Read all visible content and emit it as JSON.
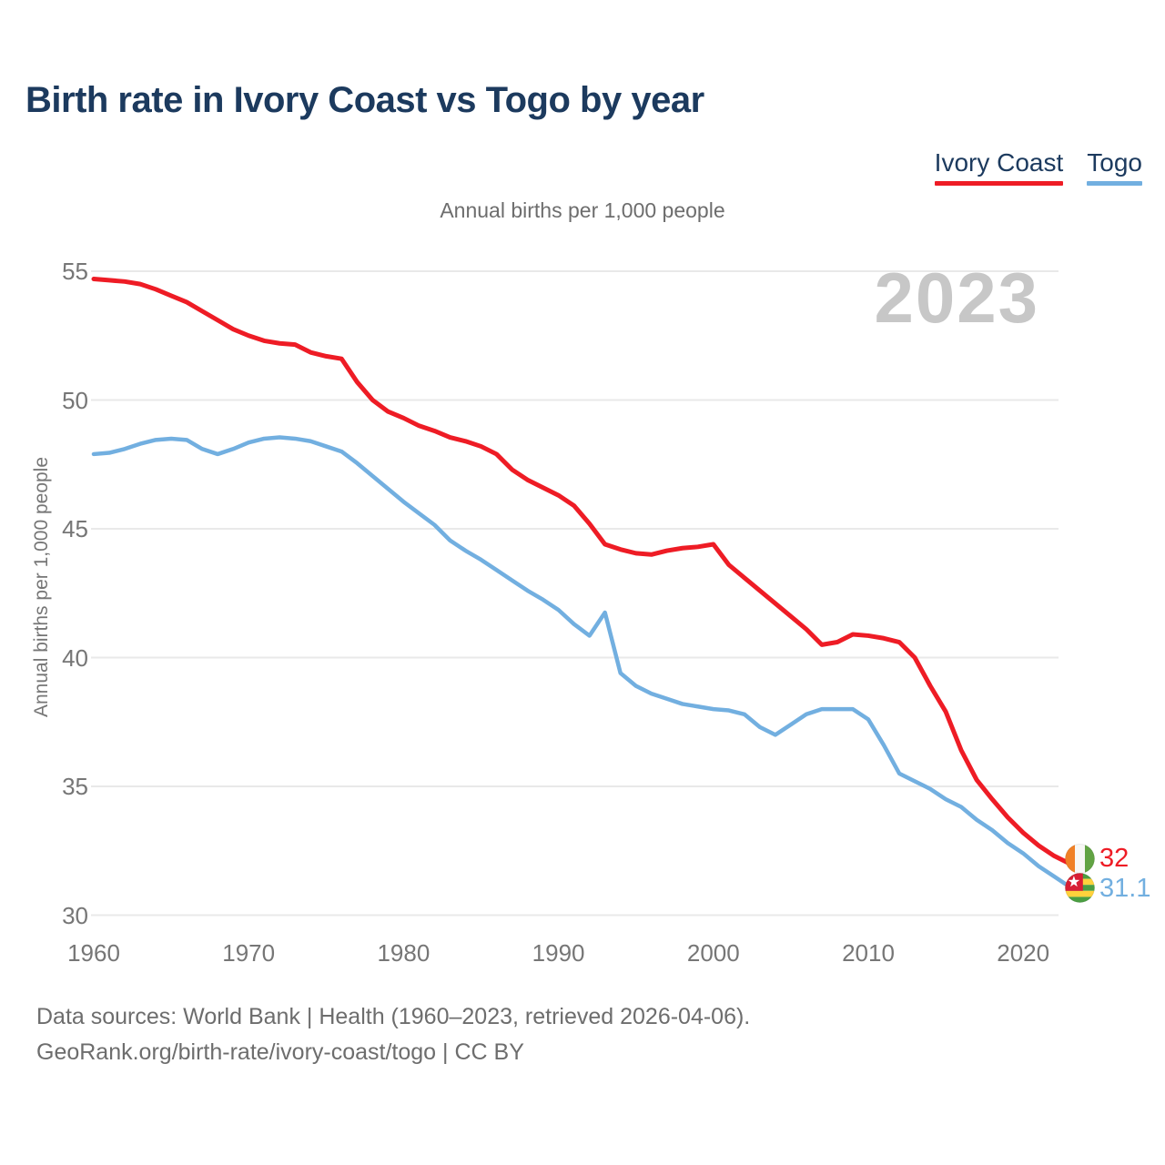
{
  "header": {
    "title": "Birth rate in Ivory Coast vs Togo by year",
    "subtitle": "Annual births per 1,000 people"
  },
  "legend": [
    {
      "label": "Ivory Coast",
      "color": "#ee1c25"
    },
    {
      "label": "Togo",
      "color": "#72afe0"
    }
  ],
  "watermark": "2023",
  "y_axis_title": "Annual births per 1,000 people",
  "end_labels": [
    {
      "series": "Ivory Coast",
      "value": "32",
      "flag": "ivory-coast-flag"
    },
    {
      "series": "Togo",
      "value": "31.1",
      "flag": "togo-flag"
    }
  ],
  "footer": {
    "line1": "Data sources: World Bank | Health (1960–2023, retrieved 2026-04-06).",
    "line2": "GeoRank.org/birth-rate/ivory-coast/togo | CC BY"
  },
  "colors": {
    "title_text": "#1c3a5e",
    "axis_text": "#767676",
    "muted_text": "#6d6d6d",
    "gridline": "#e9e9e9",
    "watermark": "#c7c7c7"
  },
  "chart_data": {
    "type": "line",
    "title": "Birth rate in Ivory Coast vs Togo by year",
    "subtitle": "Annual births per 1,000 people",
    "xlabel": "",
    "ylabel": "Annual births per 1,000 people",
    "ylim": [
      30,
      55
    ],
    "grid": "horizontal",
    "legend_position": "top-right",
    "x_ticks": [
      1960,
      1970,
      1980,
      1990,
      2000,
      2010,
      2020
    ],
    "y_ticks": [
      55,
      50,
      45,
      40,
      35,
      30
    ],
    "x": [
      1960,
      1961,
      1962,
      1963,
      1964,
      1965,
      1966,
      1967,
      1968,
      1969,
      1970,
      1971,
      1972,
      1973,
      1974,
      1975,
      1976,
      1977,
      1978,
      1979,
      1980,
      1981,
      1982,
      1983,
      1984,
      1985,
      1986,
      1987,
      1988,
      1989,
      1990,
      1991,
      1992,
      1993,
      1994,
      1995,
      1996,
      1997,
      1998,
      1999,
      2000,
      2001,
      2002,
      2003,
      2004,
      2005,
      2006,
      2007,
      2008,
      2009,
      2010,
      2011,
      2012,
      2013,
      2014,
      2015,
      2016,
      2017,
      2018,
      2019,
      2020,
      2021,
      2022,
      2023
    ],
    "series": [
      {
        "name": "Ivory Coast",
        "color": "#ee1c25",
        "end_label": "32",
        "values": [
          54.7,
          54.65,
          54.6,
          54.5,
          54.3,
          54.05,
          53.8,
          53.45,
          53.1,
          52.75,
          52.5,
          52.3,
          52.2,
          52.15,
          51.85,
          51.7,
          51.6,
          50.7,
          50.0,
          49.55,
          49.3,
          49.0,
          48.8,
          48.55,
          48.4,
          48.2,
          47.9,
          47.3,
          46.9,
          46.6,
          46.3,
          45.9,
          45.2,
          44.4,
          44.2,
          44.05,
          44.0,
          44.15,
          44.25,
          44.3,
          44.4,
          43.6,
          43.1,
          42.6,
          42.1,
          41.6,
          41.1,
          40.5,
          40.6,
          40.9,
          40.85,
          40.75,
          40.6,
          40.0,
          38.9,
          37.9,
          36.4,
          35.25,
          34.5,
          33.8,
          33.2,
          32.7,
          32.3,
          32.0
        ]
      },
      {
        "name": "Togo",
        "color": "#72afe0",
        "end_label": "31.1",
        "values": [
          47.9,
          47.95,
          48.1,
          48.3,
          48.45,
          48.5,
          48.45,
          48.1,
          47.9,
          48.1,
          48.35,
          48.5,
          48.55,
          48.5,
          48.4,
          48.2,
          48.0,
          47.55,
          47.05,
          46.55,
          46.05,
          45.6,
          45.15,
          44.55,
          44.15,
          43.8,
          43.4,
          43.0,
          42.6,
          42.25,
          41.85,
          41.3,
          40.85,
          41.75,
          39.4,
          38.9,
          38.6,
          38.4,
          38.2,
          38.1,
          38.0,
          37.95,
          37.8,
          37.3,
          37.0,
          37.4,
          37.8,
          38.0,
          38.0,
          38.0,
          37.6,
          36.6,
          35.5,
          35.2,
          34.9,
          34.5,
          34.2,
          33.7,
          33.3,
          32.8,
          32.4,
          31.9,
          31.5,
          31.1
        ]
      }
    ]
  }
}
